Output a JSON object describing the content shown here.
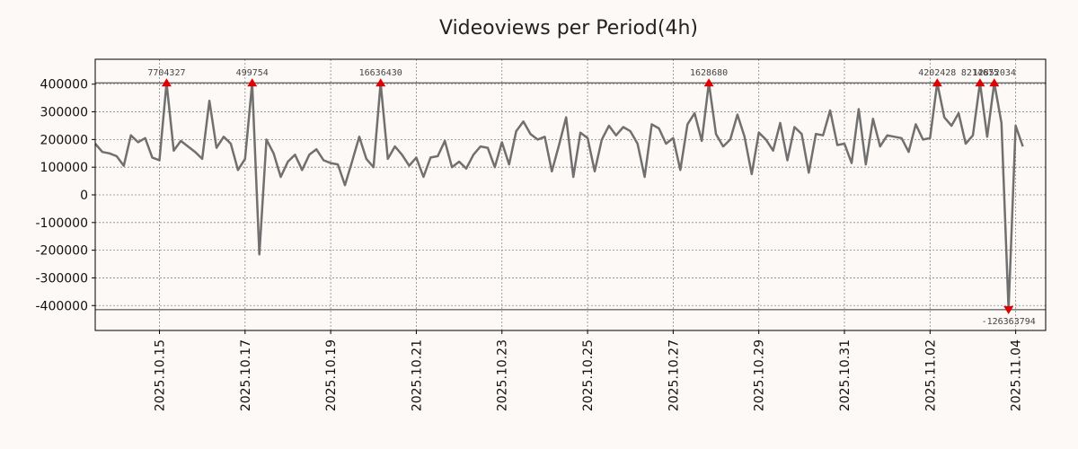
{
  "chart_data": {
    "type": "line",
    "title": "Videoviews per Period(4h)",
    "xlabel": "",
    "ylabel": "",
    "x_start": "2025.10.13 12:00",
    "period_hours": 4,
    "xlim_days": [
      0,
      22.2
    ],
    "ylim": [
      -490000,
      490000
    ],
    "yticks": [
      400000,
      300000,
      200000,
      100000,
      0,
      -100000,
      -200000,
      -300000,
      -400000
    ],
    "ytick_labels": [
      "400000",
      "300000",
      "200000",
      "100000",
      "0",
      "-100000",
      "-200000",
      "-300000",
      "-400000"
    ],
    "xtick_labels": [
      "2025.10.15",
      "2025.10.17",
      "2025.10.19",
      "2025.10.21",
      "2025.10.23",
      "2025.10.25",
      "2025.10.27",
      "2025.10.29",
      "2025.10.31",
      "2025.11.02",
      "2025.11.04"
    ],
    "xtick_days": [
      1.5,
      3.5,
      5.5,
      7.5,
      9.5,
      11.5,
      13.5,
      15.5,
      17.5,
      19.5,
      21.5
    ],
    "clip_lines": [
      405000,
      -415000
    ],
    "series": [
      {
        "name": "Videoviews",
        "color": "#707070",
        "values": [
          185000,
          155000,
          150000,
          140000,
          105000,
          215000,
          190000,
          205000,
          135000,
          125000,
          405000,
          160000,
          195000,
          175000,
          155000,
          130000,
          340000,
          170000,
          210000,
          185000,
          90000,
          130000,
          405000,
          -215000,
          200000,
          150000,
          65000,
          120000,
          145000,
          90000,
          145000,
          165000,
          125000,
          115000,
          110000,
          35000,
          120000,
          210000,
          130000,
          100000,
          405000,
          130000,
          175000,
          145000,
          105000,
          135000,
          65000,
          135000,
          140000,
          195000,
          100000,
          120000,
          95000,
          145000,
          175000,
          170000,
          100000,
          190000,
          110000,
          230000,
          265000,
          220000,
          200000,
          210000,
          85000,
          180000,
          280000,
          65000,
          225000,
          205000,
          85000,
          200000,
          250000,
          215000,
          245000,
          230000,
          185000,
          65000,
          255000,
          240000,
          185000,
          205000,
          90000,
          255000,
          295000,
          195000,
          405000,
          220000,
          175000,
          200000,
          290000,
          210000,
          75000,
          225000,
          200000,
          160000,
          260000,
          125000,
          245000,
          220000,
          80000,
          220000,
          215000,
          305000,
          180000,
          185000,
          115000,
          310000,
          110000,
          275000,
          175000,
          215000,
          210000,
          205000,
          155000,
          255000,
          200000,
          205000,
          405000,
          280000,
          250000,
          295000,
          185000,
          215000,
          405000,
          210000,
          405000,
          260000,
          -415000,
          250000,
          175000
        ]
      }
    ],
    "peaks": [
      {
        "index": 10,
        "label": "7704327",
        "direction": "up"
      },
      {
        "index": 22,
        "label": "499754",
        "direction": "up"
      },
      {
        "index": 40,
        "label": "16636430",
        "direction": "up"
      },
      {
        "index": 86,
        "label": "1628680",
        "direction": "up"
      },
      {
        "index": 118,
        "label": "4202428",
        "direction": "up"
      },
      {
        "index": 124,
        "label": "8214675",
        "direction": "up"
      },
      {
        "index": 126,
        "label": "12852034",
        "direction": "up"
      },
      {
        "index": 128,
        "label": "-126363794",
        "direction": "down"
      }
    ],
    "grid": true,
    "legend": "none",
    "colors": {
      "line": "#707070",
      "marker": "#dd0000",
      "background": "#fdf9f6",
      "axes": "#000000"
    }
  }
}
